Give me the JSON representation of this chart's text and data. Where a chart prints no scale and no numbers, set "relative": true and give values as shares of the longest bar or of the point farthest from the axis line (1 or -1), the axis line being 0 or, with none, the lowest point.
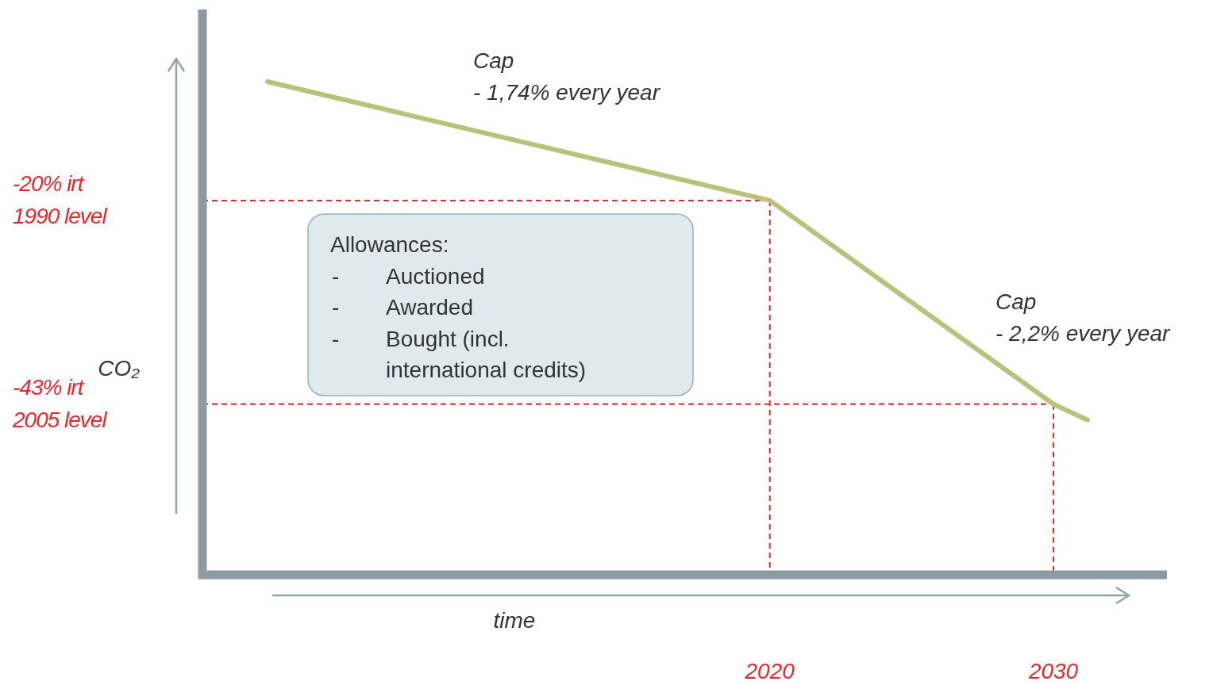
{
  "chart_data": {
    "type": "line",
    "relative": true,
    "ylabel": "CO₂",
    "xlabel": "time",
    "x": [
      2002.3,
      2020,
      2030,
      2031.2
    ],
    "series": [
      {
        "color": "#b8c27a",
        "values": [
          1,
          0.759,
          0.346,
          0.314
        ]
      }
    ],
    "xlim": [
      2000,
      2034
    ],
    "xticks": [
      2020,
      2030
    ],
    "ref_lines": [
      {
        "axis": "y",
        "value": 0.759,
        "label": "-20% irt\n1990 level",
        "color": "#e8262a",
        "line_style": "dashed"
      },
      {
        "axis": "y",
        "value": 0.346,
        "label": "-43% irt\n2005 level",
        "color": "#e8262a",
        "line_style": "dashed"
      },
      {
        "axis": "x",
        "value": 2020,
        "color": "#e8262a",
        "line_style": "dashed"
      },
      {
        "axis": "x",
        "value": 2030,
        "color": "#e8262a",
        "line_style": "dashed"
      }
    ],
    "annotations": [
      "Cap\n- 1,74% every year",
      "Cap\n- 2,2% every year",
      "Allowances:\n- Auctioned\n- Awarded\n- Bought (incl.\ninternational credits)"
    ],
    "grid": false,
    "marker": "none",
    "line_style": "solid"
  }
}
